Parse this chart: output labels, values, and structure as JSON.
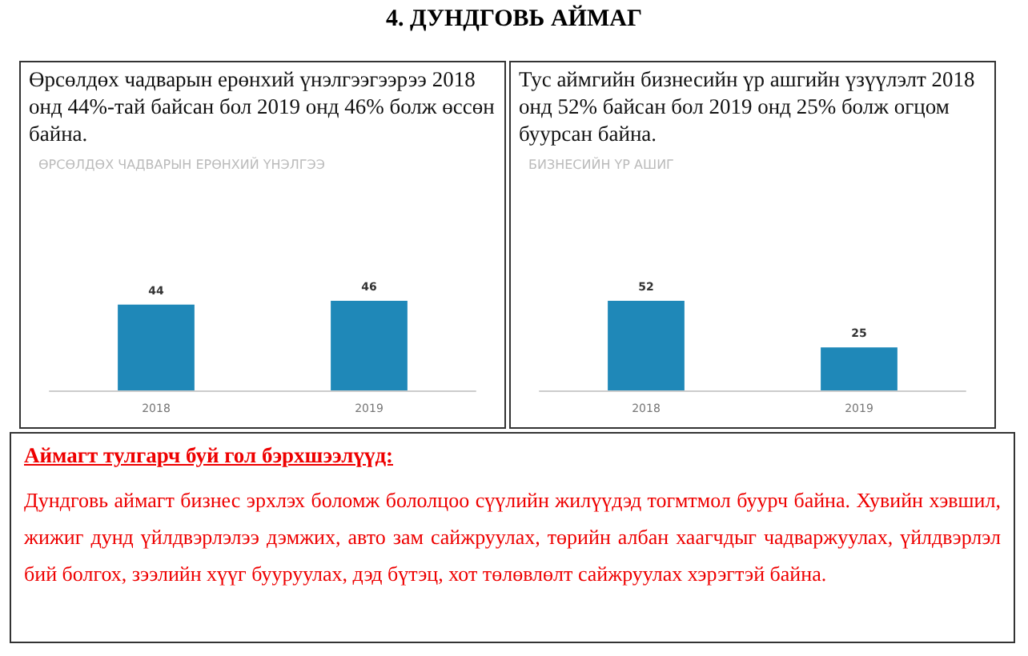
{
  "chart_data": [
    {
      "type": "other",
      "title": "4.  ДУНДГОВЬ АЙМАГ"
    },
    {
      "type": "bar",
      "subtitle": "Өрсөлдөх чадварын ерөнхий үнэлгээгээрээ  2018 онд 44%-тай байсан бол 2019 онд 46% болж өссөн байна.",
      "title": "ӨРСӨЛДӨХ ЧАДВАРЫН ЕРӨНХИЙ ҮНЭЛГЭЭ",
      "categories": [
        "2018",
        "2019"
      ],
      "values": [
        44,
        46
      ],
      "color": "#1f88b8",
      "data_labels": true
    },
    {
      "type": "bar",
      "subtitle": "Тус аймгийн бизнесийн үр ашгийн үзүүлэлт 2018 онд 52% байсан бол 2019 онд 25% болж огцом буурсан байна.",
      "title": "БИЗНЕСИЙН ҮР АШИГ",
      "categories": [
        "2018",
        "2019"
      ],
      "values": [
        52,
        25
      ],
      "color": "#1f88b8",
      "data_labels": true
    },
    {
      "type": "other",
      "title": "Аймагт тулгарч буй гол бэрхшээлүүд:",
      "annotations": [
        "Дундговь аймагт бизнес эрхлэх боломж бололцоо сүүлийн жилүүдэд тогмтмол буурч байна. Хувийн хэвшил, жижиг дунд үйлдвэрлэлээ дэмжих, авто зам сайжруулах, төрийн албан хаагчдыг чадваржуулах, үйлдвэрлэл бий болгох, зээлийн хүүг бууруулах, дэд бүтэц, хот төлөвлөлт сайжруулах хэрэгтэй байна."
      ]
    }
  ]
}
